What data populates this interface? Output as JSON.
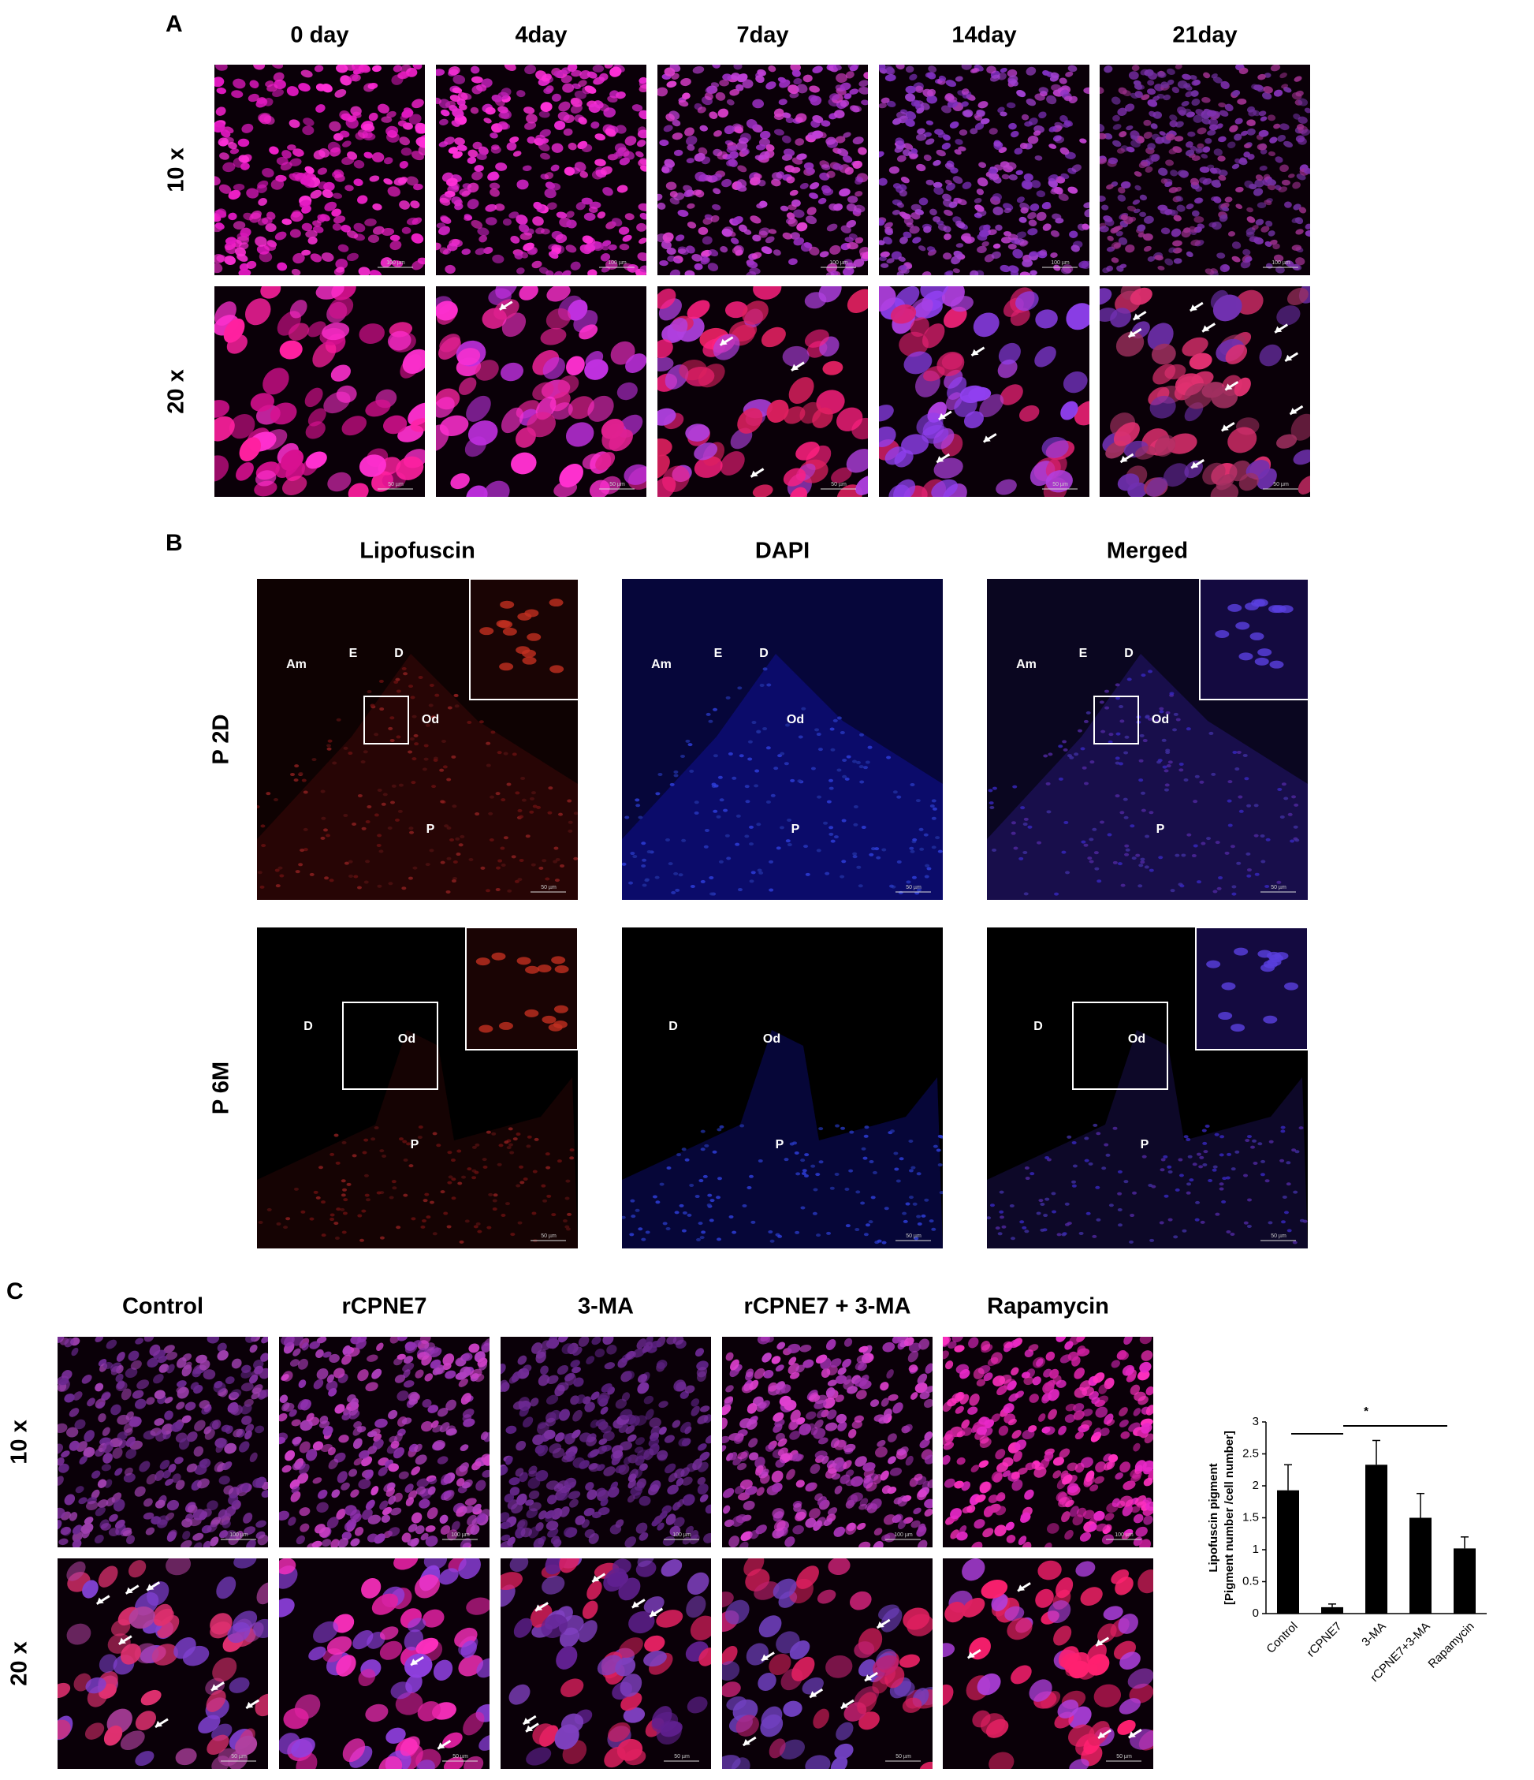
{
  "panels": {
    "A": {
      "label": "A",
      "columns": [
        "0 day",
        "4day",
        "7day",
        "14day",
        "21day"
      ],
      "rows": [
        "10 x",
        "20 x"
      ],
      "scale_bars": [
        "100 µm",
        "50 µm"
      ]
    },
    "B": {
      "label": "B",
      "columns": [
        "Lipofuscin",
        "DAPI",
        "Merged"
      ],
      "rows": [
        "P 2D",
        "P 6M"
      ],
      "scale_bar": "50 µm",
      "regions": [
        [
          "Am",
          "E",
          "D",
          "Od",
          "P"
        ],
        [
          "D",
          "Od",
          "P"
        ]
      ]
    },
    "C": {
      "label": "C",
      "columns": [
        "Control",
        "rCPNE7",
        "3-MA",
        "rCPNE7 + 3-MA",
        "Rapamycin"
      ],
      "rows": [
        "10 x",
        "20 x"
      ],
      "scale_bars": [
        "100 µm",
        "50 µm"
      ]
    }
  },
  "chart_data": {
    "type": "bar",
    "categories": [
      "Control",
      "rCPNE7",
      "3-MA",
      "rCPNE7+3-MA",
      "Rapamycin"
    ],
    "values": [
      1.93,
      0.1,
      2.33,
      1.5,
      1.02
    ],
    "errors": [
      0.4,
      0.05,
      0.38,
      0.38,
      0.18
    ],
    "color": "#000000",
    "ylabel": [
      "Lipofuscin pigment",
      "[Pigment number /cell number]"
    ],
    "ylim": [
      0,
      3
    ],
    "yticks": [
      0,
      0.5,
      1,
      1.5,
      2,
      2.5,
      3
    ],
    "annotation": "*"
  }
}
